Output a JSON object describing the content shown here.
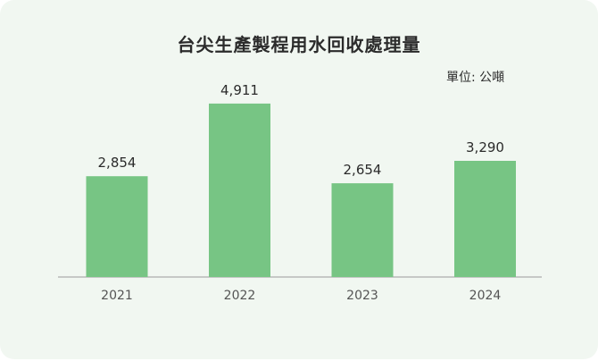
{
  "chart_data": {
    "type": "bar",
    "title": "台尖生產製程用水回收處理量",
    "unit_label": "單位: 公噸",
    "categories": [
      "2021",
      "2022",
      "2023",
      "2024"
    ],
    "values": [
      2854,
      4911,
      2654,
      3290
    ],
    "value_labels": [
      "2,854",
      "4,911",
      "2,654",
      "3,290"
    ],
    "xlabel": "",
    "ylabel": "",
    "ylim": [
      0,
      5000
    ],
    "grid": false,
    "legend": "none",
    "colors": {
      "bar": "#77c584",
      "background": "#f1f7f1"
    }
  }
}
